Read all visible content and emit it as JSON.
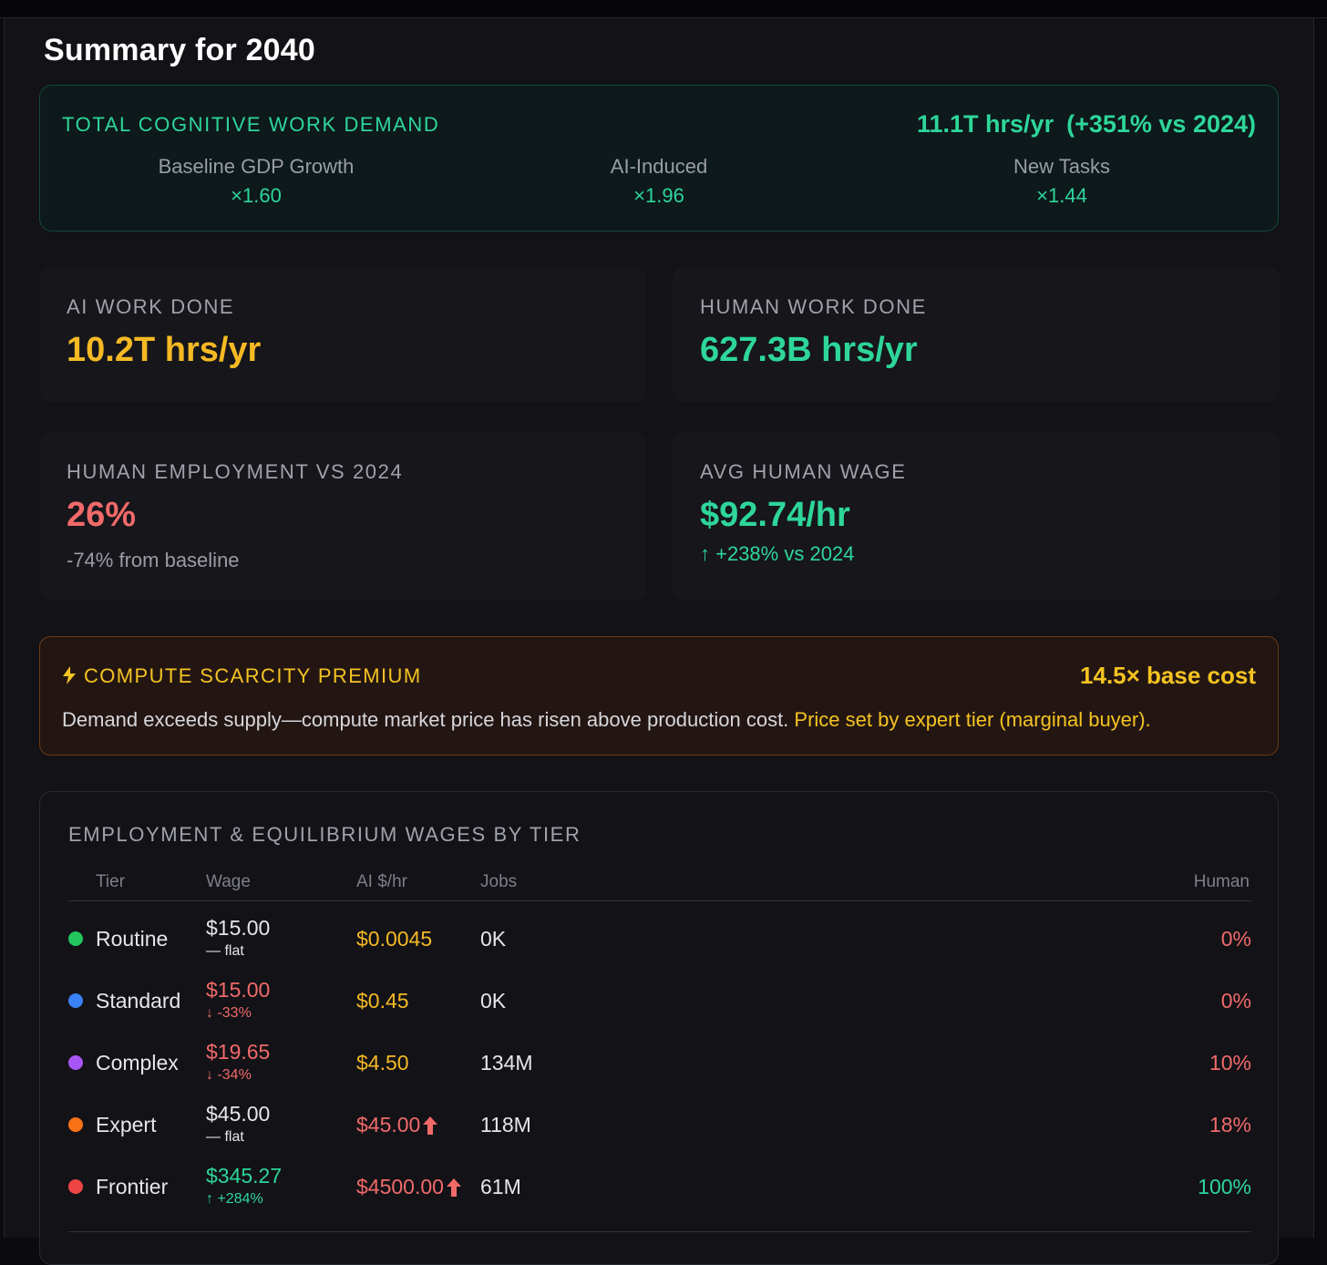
{
  "summary": {
    "title": "Summary for 2040"
  },
  "demand": {
    "label": "TOTAL COGNITIVE WORK DEMAND",
    "value": "11.1T hrs/yr",
    "change": "(+351% vs 2024)",
    "factors": [
      {
        "label": "Baseline GDP Growth",
        "value": "×1.60"
      },
      {
        "label": "AI-Induced",
        "value": "×1.96"
      },
      {
        "label": "New Tasks",
        "value": "×1.44"
      }
    ]
  },
  "ai_work": {
    "label": "AI WORK DONE",
    "value": "10.2T hrs/yr"
  },
  "human_work": {
    "label": "HUMAN WORK DONE",
    "value": "627.3B hrs/yr"
  },
  "employment": {
    "label": "HUMAN EMPLOYMENT VS 2024",
    "value": "26%",
    "sub": "-74% from baseline"
  },
  "wage": {
    "label": "AVG HUMAN WAGE",
    "value": "$92.74/hr",
    "sub": "↑ +238% vs 2024"
  },
  "premium": {
    "icon": "lightning-icon",
    "label": "COMPUTE SCARCITY PREMIUM",
    "multiplier": "14.5× base cost",
    "desc": "Demand exceeds supply—compute market price has risen above production cost.",
    "desc_highlight": "Price set by expert tier (marginal buyer)."
  },
  "tiers": {
    "header": "EMPLOYMENT & EQUILIBRIUM WAGES BY TIER",
    "columns": {
      "tier": "Tier",
      "wage": "Wage",
      "ai": "AI $/hr",
      "jobs": "Jobs",
      "human": "Human"
    },
    "rows": [
      {
        "name": "Routine",
        "dot_color": "#22c55e",
        "wage": "$15.00",
        "trend": "— flat",
        "ai": "$0.0045",
        "jobs": "0K",
        "human": "0%"
      },
      {
        "name": "Standard",
        "dot_color": "#3b82f6",
        "wage": "$15.00",
        "trend": "↓ -33%",
        "ai": "$0.45",
        "jobs": "0K",
        "human": "0%"
      },
      {
        "name": "Complex",
        "dot_color": "#a855f7",
        "wage": "$19.65",
        "trend": "↓ -34%",
        "ai": "$4.50",
        "jobs": "134M",
        "human": "10%"
      },
      {
        "name": "Expert",
        "dot_color": "#f97316",
        "wage": "$45.00",
        "trend": "— flat",
        "ai": "$45.00",
        "jobs": "118M",
        "human": "18%"
      },
      {
        "name": "Frontier",
        "dot_color": "#ef4444",
        "wage": "$345.27",
        "trend": "↑ +284%",
        "ai": "$4500.00",
        "jobs": "61M",
        "human": "100%"
      }
    ]
  },
  "colors": {
    "accent_green": "#2ed69a",
    "accent_gold": "#f5b923",
    "accent_red": "#f16a6a"
  }
}
